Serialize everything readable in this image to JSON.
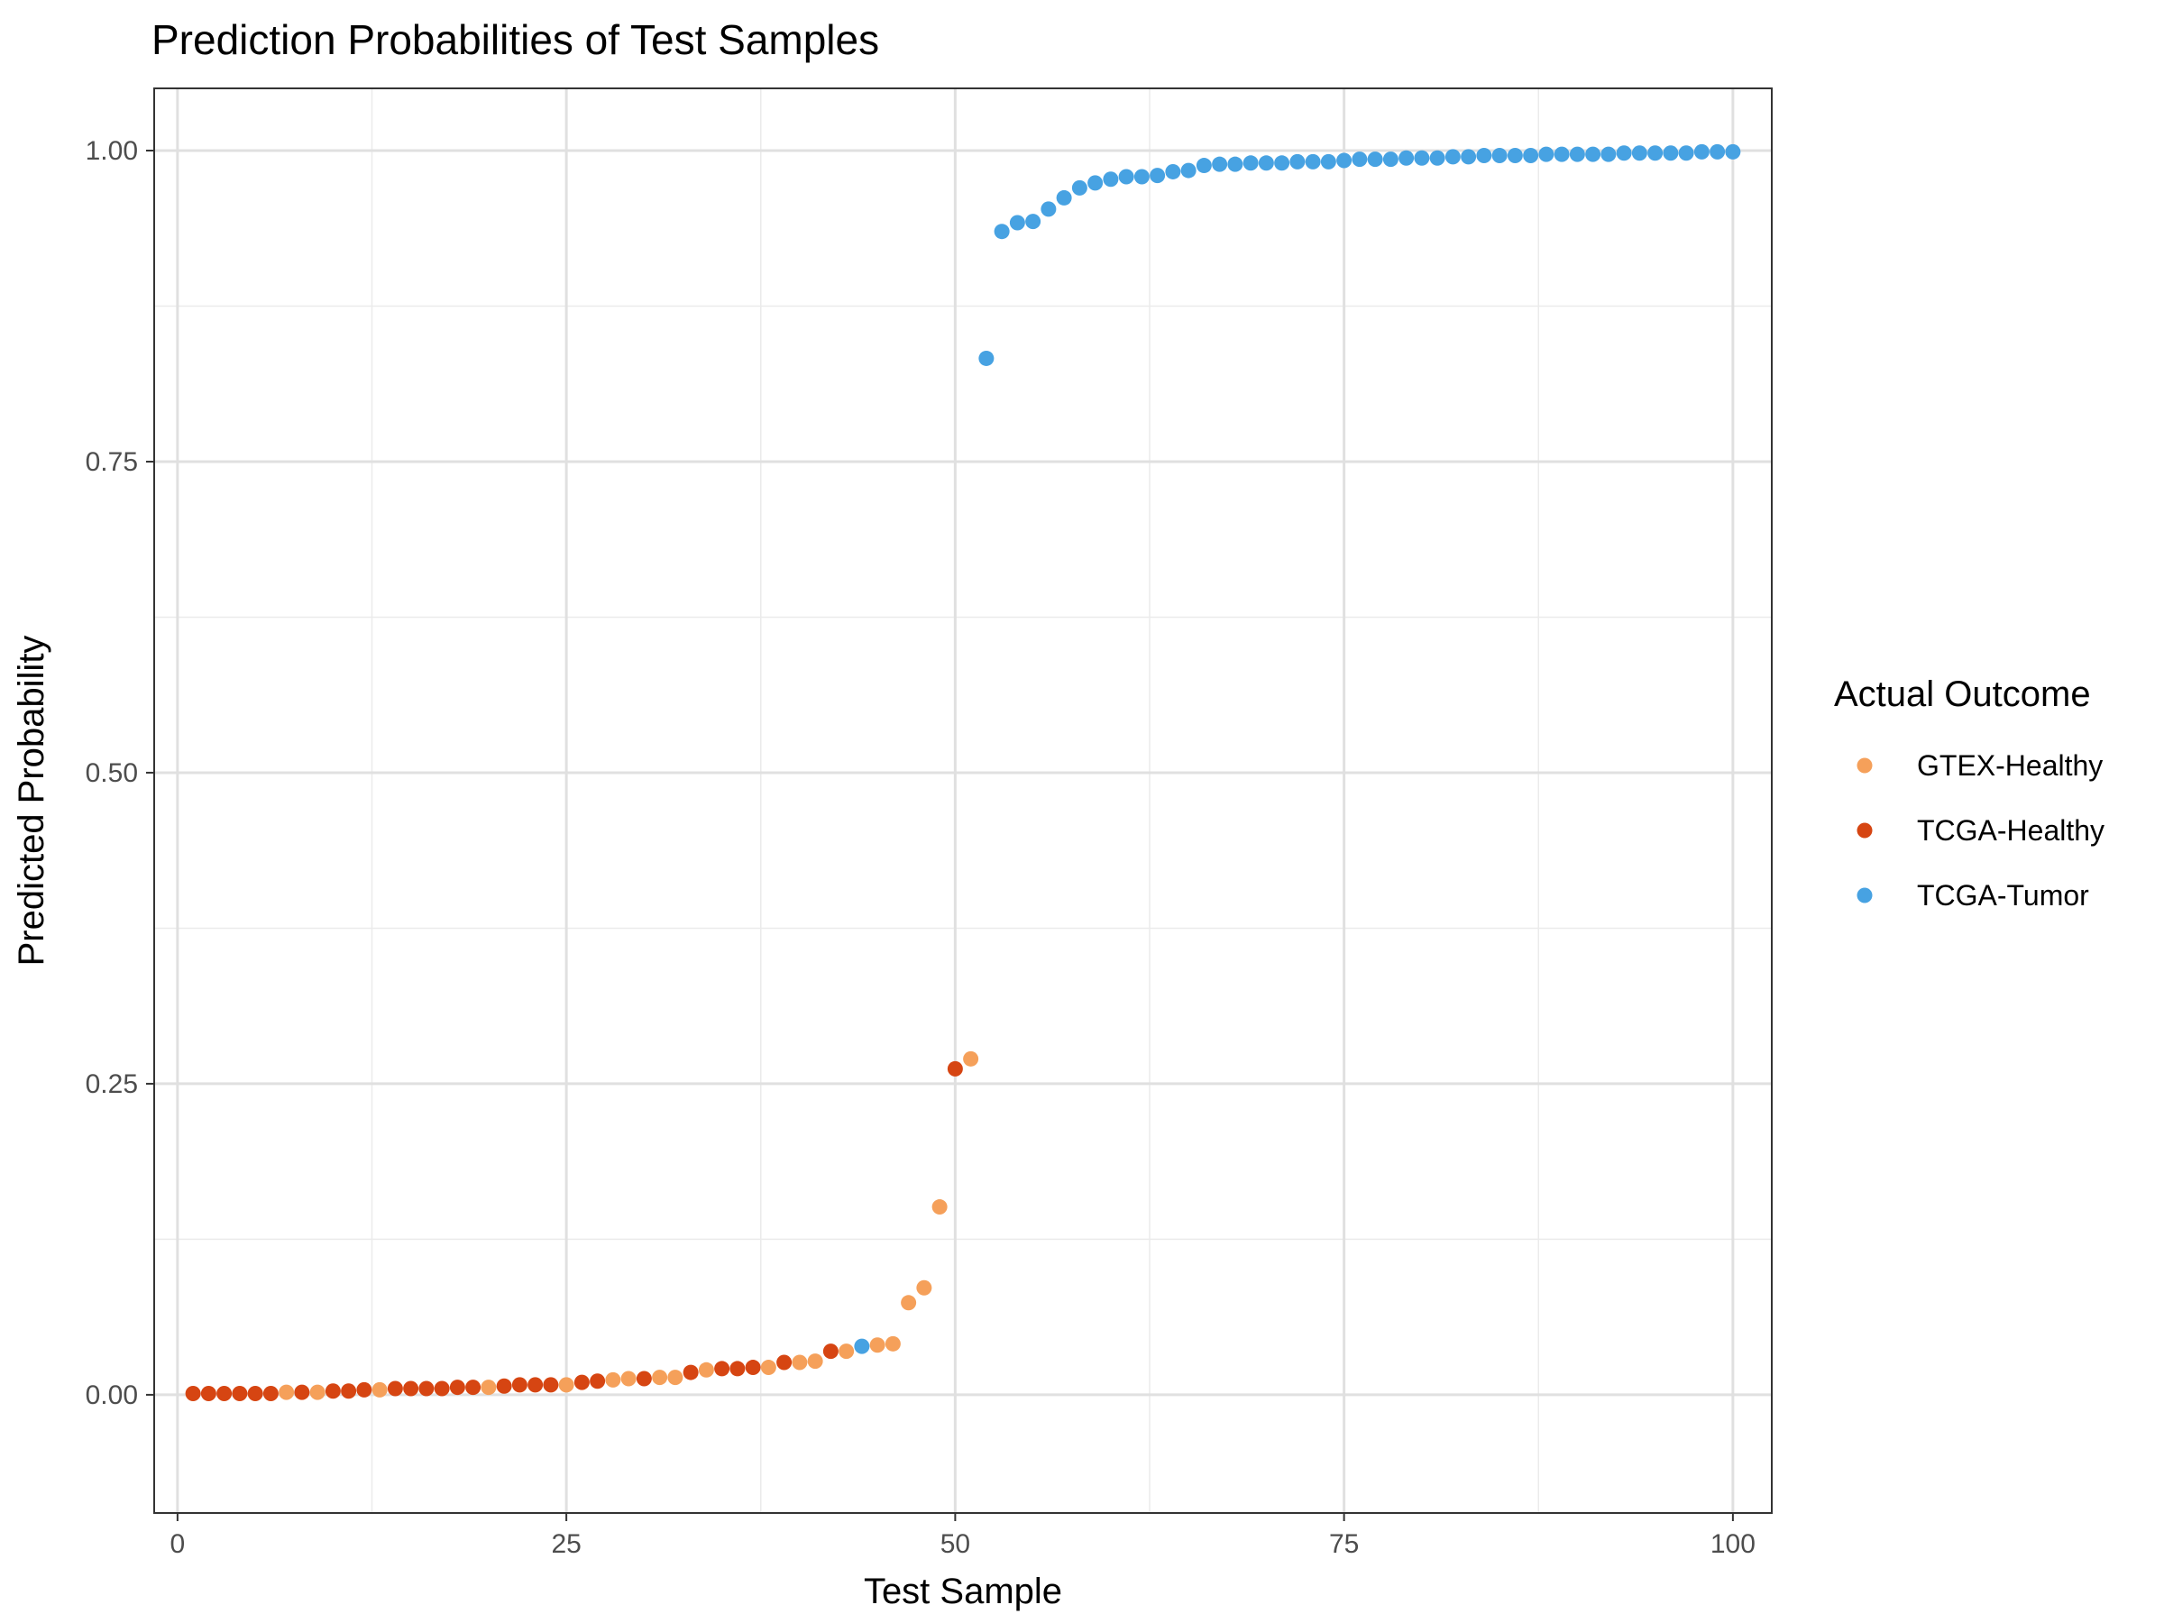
{
  "chart_data": {
    "type": "scatter",
    "title": "Prediction Probabilities of Test Samples",
    "xlabel": "Test Sample",
    "ylabel": "Predicted Probability",
    "xlim": [
      -1.5,
      102.5
    ],
    "ylim": [
      -0.095,
      1.05
    ],
    "x_ticks": [
      0,
      25,
      50,
      75,
      100
    ],
    "x_tick_labels": [
      "0",
      "25",
      "50",
      "75",
      "100"
    ],
    "y_ticks": [
      0,
      0.25,
      0.5,
      0.75,
      1
    ],
    "y_tick_labels": [
      "0.00",
      "0.25",
      "0.50",
      "0.75",
      "1.00"
    ],
    "grid": true,
    "legend": {
      "title": "Actual Outcome",
      "position": "right",
      "entries": [
        {
          "label": "GTEX-Healthy",
          "color": "#F5A05A"
        },
        {
          "label": "TCGA-Healthy",
          "color": "#D64512"
        },
        {
          "label": "TCGA-Tumor",
          "color": "#47A2E2"
        }
      ]
    },
    "series": [
      {
        "name": "GTEX-Healthy",
        "color": "#F5A05A",
        "x": [
          7,
          9,
          13,
          20,
          25,
          28,
          29,
          31,
          32,
          34,
          38,
          40,
          41,
          43,
          45,
          46,
          47,
          48,
          49,
          51
        ],
        "y": [
          0.002,
          0.002,
          0.004,
          0.006,
          0.008,
          0.012,
          0.013,
          0.014,
          0.014,
          0.02,
          0.022,
          0.026,
          0.027,
          0.035,
          0.04,
          0.041,
          0.074,
          0.086,
          0.151,
          0.27
        ]
      },
      {
        "name": "TCGA-Healthy",
        "color": "#D64512",
        "x": [
          1,
          2,
          3,
          4,
          5,
          6,
          8,
          10,
          11,
          12,
          14,
          15,
          16,
          17,
          18,
          19,
          21,
          22,
          23,
          24,
          26,
          27,
          30,
          33,
          35,
          36,
          37,
          39,
          42,
          50
        ],
        "y": [
          0.001,
          0.001,
          0.001,
          0.001,
          0.001,
          0.001,
          0.002,
          0.003,
          0.003,
          0.004,
          0.005,
          0.005,
          0.005,
          0.005,
          0.006,
          0.006,
          0.007,
          0.008,
          0.008,
          0.008,
          0.01,
          0.011,
          0.013,
          0.018,
          0.021,
          0.021,
          0.022,
          0.026,
          0.035,
          0.262
        ]
      },
      {
        "name": "TCGA-Tumor",
        "color": "#47A2E2",
        "x": [
          44,
          52,
          53,
          54,
          55,
          56,
          57,
          58,
          59,
          60,
          61,
          62,
          63,
          64,
          65,
          66,
          67,
          68,
          69,
          70,
          71,
          72,
          73,
          74,
          75,
          76,
          77,
          78,
          79,
          80,
          81,
          82,
          83,
          84,
          85,
          86,
          87,
          88,
          89,
          90,
          91,
          92,
          93,
          94,
          95,
          96,
          97,
          98,
          99,
          100
        ],
        "y": [
          0.039,
          0.833,
          0.935,
          0.942,
          0.943,
          0.953,
          0.962,
          0.97,
          0.974,
          0.977,
          0.979,
          0.979,
          0.98,
          0.983,
          0.984,
          0.988,
          0.989,
          0.989,
          0.99,
          0.99,
          0.99,
          0.991,
          0.991,
          0.991,
          0.992,
          0.993,
          0.993,
          0.993,
          0.994,
          0.994,
          0.994,
          0.995,
          0.995,
          0.996,
          0.996,
          0.996,
          0.996,
          0.997,
          0.997,
          0.997,
          0.997,
          0.997,
          0.998,
          0.998,
          0.998,
          0.998,
          0.998,
          0.999,
          0.999,
          0.999
        ]
      }
    ]
  }
}
